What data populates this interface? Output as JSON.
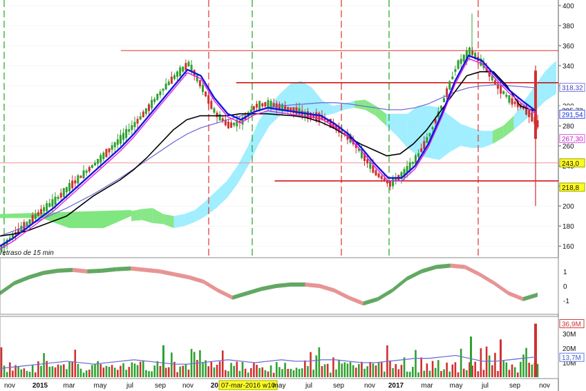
{
  "chart_data": {
    "type": "line",
    "note": "retraso de 15 min",
    "cursor_label": "07-mar-2016 w10",
    "x_labels": [
      "nov",
      "2015",
      "mar",
      "may",
      "jul",
      "sep",
      "nov",
      "2016",
      "07-mar-2016 w10",
      "may",
      "jul",
      "sep",
      "nov",
      "2017",
      "mar",
      "may",
      "jul",
      "sep",
      "nov"
    ],
    "price_axis": {
      "ylim": [
        145,
        400
      ],
      "ticks": [
        160,
        180,
        200,
        220,
        240,
        260,
        280,
        300,
        320,
        340,
        360,
        380,
        400
      ],
      "badges": [
        {
          "label": "318,32",
          "value": 318.32,
          "bg": "#ffffff",
          "border": "#8080e0",
          "color": "#4040c0"
        },
        {
          "label": "295,73",
          "value": 295.73,
          "bg": "#ffffff",
          "border": "#ffffff",
          "color": "#111111"
        },
        {
          "label": "291,54",
          "value": 291.54,
          "bg": "#ffffff",
          "border": "#4050ff",
          "color": "#1030d0"
        },
        {
          "label": "267,8",
          "value": 267.8,
          "bg": "#ffffff",
          "border": "#ffffff",
          "color": "#111111"
        },
        {
          "label": "267,30",
          "value": 267.3,
          "bg": "#ffffff",
          "border": "#e060e0",
          "color": "#c020c0"
        },
        {
          "label": "243,0",
          "value": 243.0,
          "bg": "#ffff20",
          "border": "#a0a000",
          "color": "#111111"
        },
        {
          "label": "218,8",
          "value": 218.8,
          "bg": "#ffff20",
          "border": "#a0a000",
          "color": "#111111"
        }
      ],
      "hlines": [
        {
          "value": 355,
          "x_start": 0.22,
          "color": "#e03030",
          "width": 1
        },
        {
          "value": 323,
          "x_start": 0.43,
          "color": "#d00000",
          "width": 1.5
        },
        {
          "value": 225,
          "x_start": 0.5,
          "color": "#d00000",
          "width": 1.5
        },
        {
          "value": 243,
          "x_start": 0.0,
          "color": "#f08080",
          "width": 0.8
        }
      ],
      "price_series": [
        158,
        172,
        183,
        195,
        205,
        218,
        230,
        242,
        255,
        268,
        282,
        298,
        315,
        330,
        342,
        318,
        292,
        280,
        285,
        300,
        302,
        298,
        295,
        290,
        288,
        278,
        268,
        250,
        232,
        222,
        232,
        248,
        272,
        305,
        340,
        355,
        340,
        320,
        305,
        298,
        282
      ],
      "sma_fast": [
        160,
        168,
        178,
        188,
        198,
        210,
        222,
        234,
        246,
        258,
        272,
        288,
        304,
        320,
        336,
        330,
        308,
        292,
        286,
        294,
        298,
        296,
        294,
        292,
        290,
        282,
        272,
        258,
        242,
        228,
        228,
        240,
        262,
        292,
        325,
        350,
        345,
        330,
        316,
        305,
        295
      ],
      "sma_slow": [
        170,
        175,
        180,
        186,
        192,
        198,
        205,
        212,
        220,
        228,
        237,
        246,
        255,
        264,
        272,
        278,
        282,
        286,
        290,
        294,
        298,
        300,
        301,
        302,
        303,
        303,
        302,
        300,
        298,
        296,
        296,
        298,
        302,
        308,
        314,
        318,
        320,
        321,
        320,
        319,
        318
      ],
      "kijun": [
        170,
        172,
        175,
        180,
        185,
        190,
        200,
        210,
        218,
        226,
        236,
        248,
        262,
        276,
        286,
        290,
        290,
        290,
        292,
        292,
        292,
        291,
        290,
        288,
        284,
        278,
        270,
        262,
        256,
        250,
        252,
        262,
        276,
        294,
        312,
        330,
        334,
        334,
        320,
        300,
        295
      ],
      "cloud_top": [
        195,
        197,
        198,
        192,
        190,
        192,
        196,
        205,
        215,
        225,
        240,
        260,
        285,
        300,
        312,
        322,
        325,
        318,
        305,
        300,
        302,
        305,
        306,
        300,
        292,
        292,
        292,
        300,
        300,
        298,
        290,
        282,
        278,
        275,
        275,
        280,
        290,
        305,
        320,
        335,
        345
      ],
      "cloud_bot": [
        185,
        186,
        183,
        182,
        178,
        180,
        184,
        190,
        198,
        208,
        222,
        240,
        262,
        280,
        290,
        295,
        292,
        290,
        290,
        292,
        296,
        298,
        296,
        290,
        280,
        270,
        258,
        250,
        248,
        246,
        254,
        260,
        258,
        258,
        262,
        268,
        276,
        285,
        295,
        305,
        312
      ]
    },
    "oscillator": {
      "ylim": [
        -1.8,
        1.8
      ],
      "ticks": [
        -1,
        0,
        1
      ],
      "values": [
        -0.5,
        0.2,
        0.6,
        0.9,
        1.05,
        1.1,
        1.0,
        1.05,
        1.15,
        1.2,
        1.1,
        1.0,
        0.8,
        0.6,
        0.3,
        -0.3,
        -0.8,
        -0.5,
        -0.2,
        0.0,
        0.1,
        0.1,
        0.0,
        -0.3,
        -0.8,
        -1.2,
        -0.9,
        -0.3,
        0.5,
        1.0,
        1.3,
        1.4,
        1.3,
        0.8,
        0.2,
        -0.5,
        -0.9,
        -0.6
      ]
    },
    "volume": {
      "ylim": [
        0,
        40
      ],
      "ticks": [
        10,
        20,
        30
      ],
      "tick_labels": [
        "10M",
        "20M",
        "30M"
      ],
      "badges": [
        {
          "label": "36,9M",
          "value": 36.9,
          "border": "#d04040",
          "color": "#d03030"
        },
        {
          "label": "13,7M",
          "value": 13.7,
          "border": "#6080e0",
          "color": "#4060d0"
        }
      ],
      "avg_series": [
        6,
        7,
        8,
        9,
        10,
        11,
        10,
        9,
        10,
        11,
        12,
        11,
        10,
        9,
        9,
        10,
        11,
        12,
        11,
        10,
        11,
        12,
        11,
        11,
        12,
        12,
        11,
        10,
        10,
        11,
        12,
        13,
        13,
        14,
        15,
        13,
        11,
        11,
        12,
        13,
        14
      ]
    },
    "colors": {
      "up": "#30a030",
      "down": "#d03030",
      "fast_line": "#1515e0",
      "trend_line": "#7070d8",
      "kijun_line": "#000000",
      "magenta_line": "#e020e0",
      "cloud_bull": "#80e8ff",
      "cloud_bear": "#60e060",
      "vline_green": "#20a020",
      "vline_red": "#e03030",
      "osc_green": "#2e8b2e",
      "osc_red": "#e07070"
    }
  }
}
